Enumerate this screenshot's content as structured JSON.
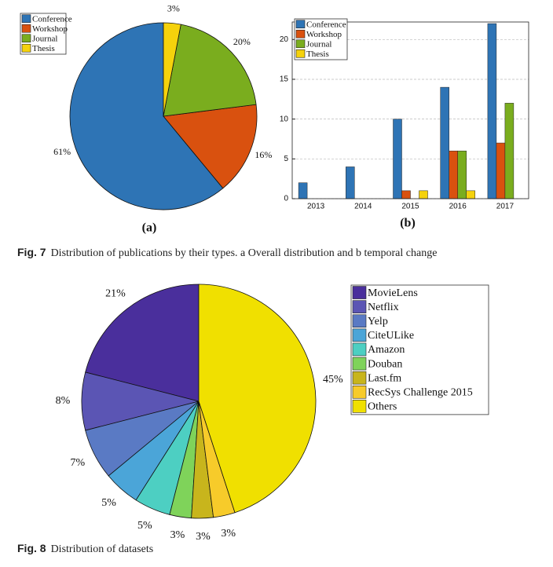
{
  "chart_data": [
    {
      "type": "pie",
      "panel": "(a)",
      "categories": [
        "Conference",
        "Workshop",
        "Journal",
        "Thesis"
      ],
      "values": [
        61,
        16,
        20,
        3
      ],
      "value_labels": [
        "61%",
        "16%",
        "20%",
        "3%"
      ],
      "colors": [
        "#2e74b5",
        "#d9510f",
        "#7aad1e",
        "#f5d20c"
      ],
      "legend": "upper left"
    },
    {
      "type": "bar",
      "panel": "(b)",
      "categories": [
        "2013",
        "2014",
        "2015",
        "2016",
        "2017"
      ],
      "series": [
        {
          "name": "Conference",
          "color": "#2e74b5",
          "values": [
            2,
            4,
            10,
            14,
            22
          ]
        },
        {
          "name": "Workshop",
          "color": "#d9510f",
          "values": [
            0,
            0,
            1,
            6,
            7
          ]
        },
        {
          "name": "Journal",
          "color": "#7aad1e",
          "values": [
            0,
            0,
            0,
            6,
            12
          ]
        },
        {
          "name": "Thesis",
          "color": "#f5d20c",
          "values": [
            0,
            0,
            1,
            1,
            0
          ]
        }
      ],
      "ylim": [
        0,
        22.2
      ],
      "yticks": [
        0,
        5,
        10,
        15,
        20
      ],
      "grid": true,
      "legend": "upper left"
    },
    {
      "type": "pie",
      "categories": [
        "MovieLens",
        "Netflix",
        "Yelp",
        "CiteULike",
        "Amazon",
        "Douban",
        "Last.fm",
        "RecSys Challenge 2015",
        "Others"
      ],
      "values": [
        21,
        8,
        7,
        5,
        5,
        3,
        3,
        3,
        45
      ],
      "value_labels": [
        "21%",
        "8%",
        "7%",
        "5%",
        "5%",
        "3%",
        "3%",
        "3%",
        "45%"
      ],
      "colors": [
        "#4a2f9c",
        "#5b55b4",
        "#5a7ac4",
        "#4ba5d8",
        "#4dcfc2",
        "#7fd35a",
        "#c8b51c",
        "#f7cb2a",
        "#f0e000"
      ],
      "legend": "right"
    }
  ],
  "captions": [
    {
      "label": "Fig. 7",
      "text": "Distribution of publications by their types. a Overall distribution and b temporal change"
    },
    {
      "label": "Fig. 8",
      "text": "Distribution of datasets"
    }
  ]
}
